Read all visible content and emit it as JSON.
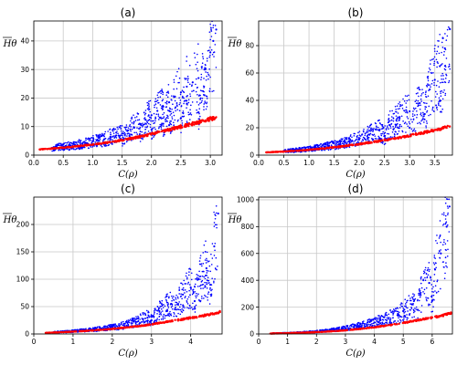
{
  "figure": {
    "colors": {
      "upper_series": "#0000ff",
      "lower_series": "#ff0000",
      "grid": "#c8c8c8",
      "axes": "#000000"
    }
  },
  "chart_data": [
    {
      "type": "scatter",
      "title": "(a)",
      "xlabel": "C(ρ)",
      "ylabel": "Hθ",
      "xlim": [
        0,
        3.2
      ],
      "ylim": [
        0,
        47
      ],
      "xticks": [
        0.0,
        0.5,
        1.0,
        1.5,
        2.0,
        2.5,
        3.0
      ],
      "xtick_labels": [
        "0.0",
        "0.5",
        "1.0",
        "1.5",
        "2.0",
        "2.5",
        "3.0"
      ],
      "yticks": [
        0,
        10,
        20,
        30,
        40
      ],
      "ytick_labels": [
        "0",
        "10",
        "20",
        "30",
        "40"
      ],
      "grid": true,
      "series": [
        {
          "color": "#0000ff",
          "points": [
            [
              0.3,
              2.5
            ],
            [
              0.5,
              3.0
            ],
            [
              0.7,
              3.5
            ],
            [
              0.9,
              4.2
            ],
            [
              1.0,
              4.8
            ],
            [
              1.1,
              5.0
            ],
            [
              1.2,
              5.6
            ],
            [
              1.3,
              6.4
            ],
            [
              1.4,
              6.9
            ],
            [
              1.5,
              7.6
            ],
            [
              1.6,
              8.7
            ],
            [
              1.7,
              9.8
            ],
            [
              1.8,
              11.0
            ],
            [
              1.9,
              12.4
            ],
            [
              2.0,
              14.0
            ],
            [
              2.1,
              15.5
            ],
            [
              2.2,
              17.0
            ],
            [
              2.3,
              18.5
            ],
            [
              2.4,
              20.5
            ],
            [
              2.5,
              22.0
            ],
            [
              2.6,
              24.0
            ],
            [
              2.7,
              25.5
            ],
            [
              2.8,
              27.0
            ],
            [
              2.9,
              30.0
            ],
            [
              3.0,
              36.0
            ],
            [
              3.05,
              40.0
            ],
            [
              3.1,
              44.0
            ],
            [
              2.0,
              9.0
            ],
            [
              2.2,
              11.0
            ],
            [
              2.5,
              13.0
            ],
            [
              2.8,
              15.0
            ],
            [
              1.5,
              5.5
            ],
            [
              1.8,
              7.0
            ],
            [
              2.3,
              10.5
            ],
            [
              2.6,
              18.0
            ],
            [
              2.9,
              21.0
            ]
          ]
        },
        {
          "color": "#ff0000",
          "points": [
            [
              0.1,
              2.0
            ],
            [
              0.3,
              2.3
            ],
            [
              0.5,
              2.6
            ],
            [
              0.7,
              3.0
            ],
            [
              0.9,
              3.5
            ],
            [
              1.1,
              4.0
            ],
            [
              1.3,
              4.5
            ],
            [
              1.5,
              5.2
            ],
            [
              1.7,
              6.0
            ],
            [
              1.9,
              6.9
            ],
            [
              2.1,
              7.9
            ],
            [
              2.3,
              8.9
            ],
            [
              2.5,
              10.0
            ],
            [
              2.7,
              11.0
            ],
            [
              2.9,
              12.0
            ],
            [
              3.1,
              13.3
            ]
          ]
        }
      ]
    },
    {
      "type": "scatter",
      "title": "(b)",
      "xlabel": "C(ρ)",
      "ylabel": "Hθ",
      "xlim": [
        0,
        3.85
      ],
      "ylim": [
        0,
        98
      ],
      "xticks": [
        0.0,
        0.5,
        1.0,
        1.5,
        2.0,
        2.5,
        3.0,
        3.5
      ],
      "xtick_labels": [
        "0.0",
        "0.5",
        "1.0",
        "1.5",
        "2.0",
        "2.5",
        "3.0",
        "3.5"
      ],
      "yticks": [
        0,
        20,
        40,
        60,
        80
      ],
      "ytick_labels": [
        "0",
        "20",
        "40",
        "60",
        "80"
      ],
      "grid": true,
      "series": [
        {
          "color": "#0000ff",
          "points": [
            [
              0.5,
              3.0
            ],
            [
              0.8,
              3.8
            ],
            [
              1.0,
              4.5
            ],
            [
              1.2,
              5.5
            ],
            [
              1.4,
              6.8
            ],
            [
              1.6,
              8.0
            ],
            [
              1.8,
              10.0
            ],
            [
              2.0,
              12.0
            ],
            [
              2.2,
              15.0
            ],
            [
              2.4,
              18.0
            ],
            [
              2.6,
              22.0
            ],
            [
              2.8,
              27.0
            ],
            [
              3.0,
              32.0
            ],
            [
              3.2,
              38.0
            ],
            [
              3.4,
              48.0
            ],
            [
              3.5,
              55.0
            ],
            [
              3.6,
              65.0
            ],
            [
              3.7,
              78.0
            ],
            [
              3.8,
              92.0
            ],
            [
              2.5,
              14.0
            ],
            [
              3.0,
              20.0
            ],
            [
              3.3,
              30.0
            ],
            [
              3.6,
              40.0
            ]
          ]
        },
        {
          "color": "#ff0000",
          "points": [
            [
              0.15,
              2.0
            ],
            [
              0.5,
              2.6
            ],
            [
              0.8,
              3.3
            ],
            [
              1.1,
              4.2
            ],
            [
              1.4,
              5.3
            ],
            [
              1.7,
              6.6
            ],
            [
              2.0,
              8.0
            ],
            [
              2.3,
              9.7
            ],
            [
              2.6,
              11.5
            ],
            [
              2.9,
              13.5
            ],
            [
              3.2,
              15.8
            ],
            [
              3.5,
              18.2
            ],
            [
              3.8,
              21.0
            ]
          ]
        }
      ]
    },
    {
      "type": "scatter",
      "title": "(c)",
      "xlabel": "C(ρ)",
      "ylabel": "Hθ",
      "xlim": [
        0,
        4.8
      ],
      "ylim": [
        0,
        250
      ],
      "xticks": [
        0,
        1,
        2,
        3,
        4
      ],
      "xtick_labels": [
        "0",
        "1",
        "2",
        "3",
        "4"
      ],
      "yticks": [
        0,
        50,
        100,
        150,
        200
      ],
      "ytick_labels": [
        "0",
        "50",
        "100",
        "150",
        "200"
      ],
      "grid": true,
      "series": [
        {
          "color": "#0000ff",
          "points": [
            [
              0.5,
              3.0
            ],
            [
              1.0,
              5.0
            ],
            [
              1.5,
              8.0
            ],
            [
              2.0,
              12.0
            ],
            [
              2.3,
              16.0
            ],
            [
              2.6,
              22.0
            ],
            [
              2.9,
              30.0
            ],
            [
              3.2,
              42.0
            ],
            [
              3.5,
              55.0
            ],
            [
              3.8,
              72.0
            ],
            [
              4.0,
              85.0
            ],
            [
              4.2,
              100.0
            ],
            [
              4.4,
              120.0
            ],
            [
              4.6,
              160.0
            ],
            [
              4.7,
              220.0
            ],
            [
              3.0,
              25.0
            ],
            [
              3.6,
              45.0
            ],
            [
              4.1,
              60.0
            ],
            [
              4.5,
              90.0
            ]
          ]
        },
        {
          "color": "#ff0000",
          "points": [
            [
              0.3,
              2.0
            ],
            [
              0.8,
              3.5
            ],
            [
              1.3,
              5.5
            ],
            [
              1.8,
              8.0
            ],
            [
              2.3,
              11.5
            ],
            [
              2.8,
              15.5
            ],
            [
              3.3,
              21.0
            ],
            [
              3.8,
              27.0
            ],
            [
              4.3,
              33.0
            ],
            [
              4.75,
              40.0
            ]
          ]
        }
      ]
    },
    {
      "type": "scatter",
      "title": "(d)",
      "xlabel": "C(ρ)",
      "ylabel": "Hθ",
      "xlim": [
        0,
        6.7
      ],
      "ylim": [
        0,
        1020
      ],
      "xticks": [
        0,
        1,
        2,
        3,
        4,
        5,
        6
      ],
      "xtick_labels": [
        "0",
        "1",
        "2",
        "3",
        "4",
        "5",
        "6"
      ],
      "yticks": [
        0,
        200,
        400,
        600,
        800,
        1000
      ],
      "ytick_labels": [
        "0",
        "200",
        "400",
        "600",
        "800",
        "1000"
      ],
      "grid": true,
      "series": [
        {
          "color": "#0000ff",
          "points": [
            [
              0.5,
              5.0
            ],
            [
              1.0,
              8.0
            ],
            [
              1.5,
              12.0
            ],
            [
              2.0,
              18.0
            ],
            [
              2.5,
              28.0
            ],
            [
              3.0,
              42.0
            ],
            [
              3.5,
              60.0
            ],
            [
              4.0,
              85.0
            ],
            [
              4.5,
              120.0
            ],
            [
              5.0,
              170.0
            ],
            [
              5.3,
              220.0
            ],
            [
              5.6,
              290.0
            ],
            [
              5.9,
              380.0
            ],
            [
              6.1,
              480.0
            ],
            [
              6.3,
              600.0
            ],
            [
              6.5,
              800.0
            ],
            [
              6.6,
              950.0
            ],
            [
              4.8,
              140.0
            ],
            [
              5.5,
              180.0
            ],
            [
              6.0,
              250.0
            ]
          ]
        },
        {
          "color": "#ff0000",
          "points": [
            [
              0.4,
              3.0
            ],
            [
              1.0,
              6.0
            ],
            [
              1.6,
              10.0
            ],
            [
              2.2,
              16.0
            ],
            [
              2.8,
              24.0
            ],
            [
              3.4,
              35.0
            ],
            [
              4.0,
              50.0
            ],
            [
              4.6,
              68.0
            ],
            [
              5.2,
              90.0
            ],
            [
              5.8,
              115.0
            ],
            [
              6.3,
              135.0
            ],
            [
              6.65,
              155.0
            ]
          ]
        }
      ]
    }
  ]
}
